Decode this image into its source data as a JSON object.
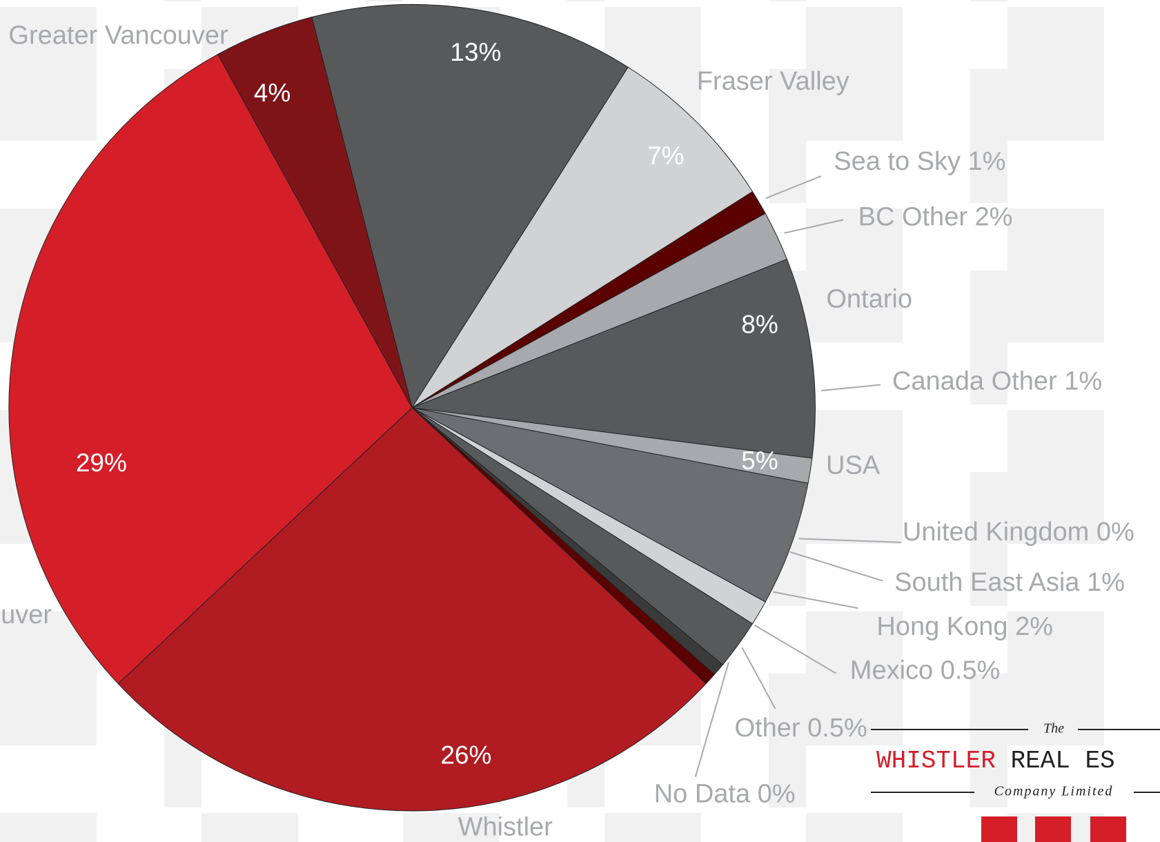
{
  "chart_data": {
    "type": "pie",
    "categories": [
      null,
      "Fraser Valley",
      "Sea to Sky",
      "BC Other",
      "Ontario",
      "Canada Other",
      "USA",
      "United Kingdom",
      "South East Asia",
      "Hong Kong",
      "Mexico",
      "Other",
      "No Data",
      "Whistler",
      "uver",
      "Greater Vancouver"
    ],
    "values": [
      13,
      7,
      1,
      2,
      8,
      1,
      5,
      0,
      1,
      2,
      0.5,
      0.5,
      0,
      26,
      29,
      4
    ],
    "value_labels": [
      "13%",
      "7%",
      "1%",
      "2%",
      "8%",
      "1%",
      "5%",
      "0%",
      "1%",
      "2%",
      "0.5%",
      "0.5%",
      "0%",
      "26%",
      "29%",
      "4%"
    ],
    "colors": [
      "#58595b",
      "#d1d2d4",
      "#5a0000",
      "#a7a9ac",
      "#58595b",
      "#a7a9ac",
      "#6d6e71",
      "#3a3a3a",
      "#d1d2d4",
      "#58595b",
      "#3a3a3a",
      "#5a0000",
      "#6d6e71",
      "#b01c22",
      "#d41f29",
      "#7f1418"
    ]
  },
  "logo": {
    "the": "The",
    "name_red": "WHISTLER",
    "name_dark": "REAL ES",
    "tagline": "Company Limited"
  }
}
